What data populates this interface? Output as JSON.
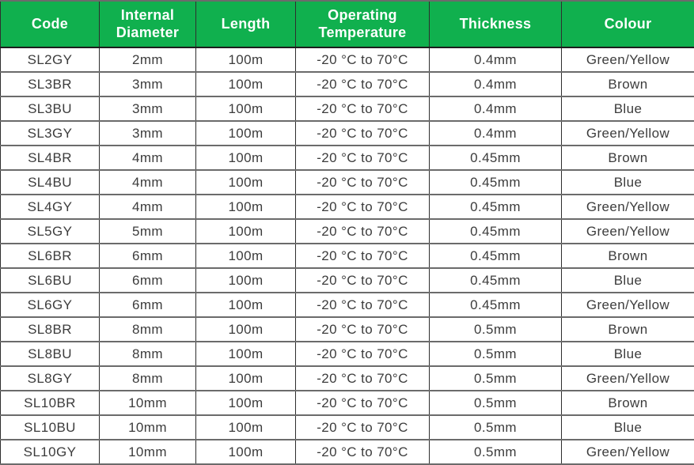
{
  "table": {
    "columns": [
      "Code",
      "Internal Diameter",
      "Length",
      "Operating Temperature",
      "Thickness",
      "Colour"
    ],
    "rows": [
      [
        "SL2GY",
        "2mm",
        "100m",
        "-20 °C to 70°C",
        "0.4mm",
        "Green/Yellow"
      ],
      [
        "SL3BR",
        "3mm",
        "100m",
        "-20 °C to 70°C",
        "0.4mm",
        "Brown"
      ],
      [
        "SL3BU",
        "3mm",
        "100m",
        "-20 °C to 70°C",
        "0.4mm",
        "Blue"
      ],
      [
        "SL3GY",
        "3mm",
        "100m",
        "-20 °C to 70°C",
        "0.4mm",
        "Green/Yellow"
      ],
      [
        "SL4BR",
        "4mm",
        "100m",
        "-20 °C to 70°C",
        "0.45mm",
        "Brown"
      ],
      [
        "SL4BU",
        "4mm",
        "100m",
        "-20 °C to 70°C",
        "0.45mm",
        "Blue"
      ],
      [
        "SL4GY",
        "4mm",
        "100m",
        "-20 °C to 70°C",
        "0.45mm",
        "Green/Yellow"
      ],
      [
        "SL5GY",
        "5mm",
        "100m",
        "-20 °C to 70°C",
        "0.45mm",
        "Green/Yellow"
      ],
      [
        "SL6BR",
        "6mm",
        "100m",
        "-20 °C to 70°C",
        "0.45mm",
        "Brown"
      ],
      [
        "SL6BU",
        "6mm",
        "100m",
        "-20 °C to 70°C",
        "0.45mm",
        "Blue"
      ],
      [
        "SL6GY",
        "6mm",
        "100m",
        "-20 °C to 70°C",
        "0.45mm",
        "Green/Yellow"
      ],
      [
        "SL8BR",
        "8mm",
        "100m",
        "-20 °C to 70°C",
        "0.5mm",
        "Brown"
      ],
      [
        "SL8BU",
        "8mm",
        "100m",
        "-20 °C to 70°C",
        "0.5mm",
        "Blue"
      ],
      [
        "SL8GY",
        "8mm",
        "100m",
        "-20 °C to 70°C",
        "0.5mm",
        "Green/Yellow"
      ],
      [
        "SL10BR",
        "10mm",
        "100m",
        "-20 °C to 70°C",
        "0.5mm",
        "Brown"
      ],
      [
        "SL10BU",
        "10mm",
        "100m",
        "-20 °C to 70°C",
        "0.5mm",
        "Blue"
      ],
      [
        "SL10GY",
        "10mm",
        "100m",
        "-20 °C to 70°C",
        "0.5mm",
        "Green/Yellow"
      ]
    ],
    "cell_names": [
      "code",
      "internal-diameter",
      "length",
      "operating-temperature",
      "thickness",
      "colour"
    ]
  },
  "colors": {
    "header_bg": "#10B04E",
    "header_text": "#FFFFFF",
    "body_text": "#3C3C3C",
    "grid_vertical": "#2E2E2E",
    "grid_horizontal": "#6B6B6B"
  }
}
